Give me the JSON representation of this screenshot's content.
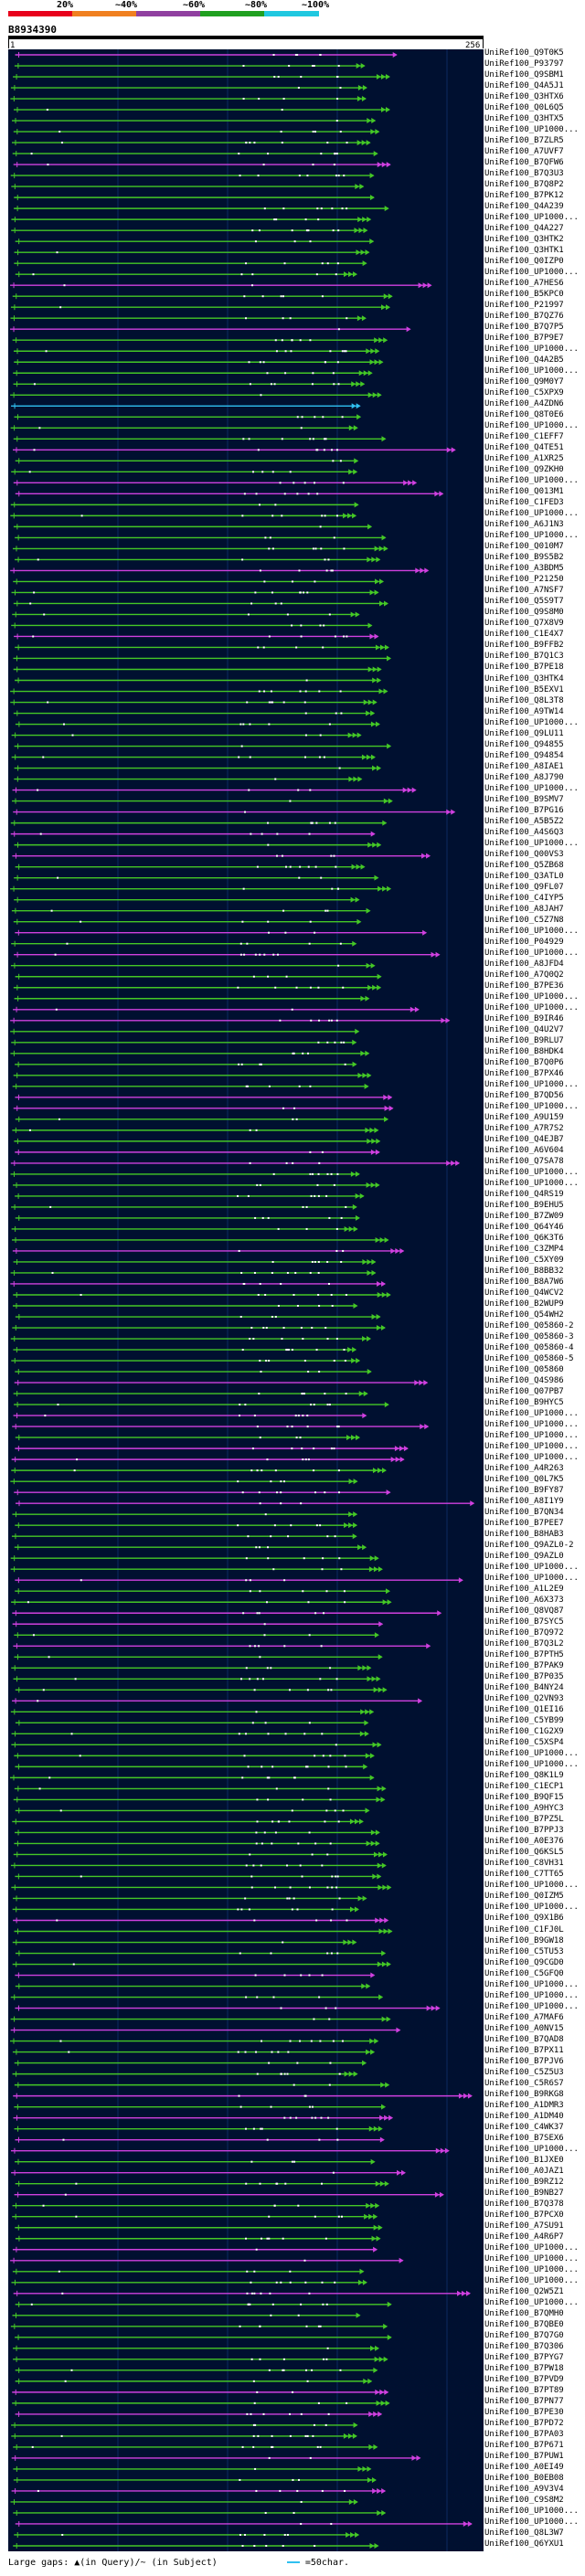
{
  "legend": {
    "labels": [
      "20%",
      "~40%",
      "~60%",
      "~80%",
      "~100%"
    ],
    "colors": [
      "#e8001c",
      "#f08020",
      "#9040a0",
      "#20a020",
      "#20c8e0"
    ]
  },
  "query": {
    "id": "B8934390",
    "start": "1",
    "end": "256"
  },
  "colors": {
    "green": "#44c826",
    "magenta": "#d040e0",
    "cyan": "#30c0f0",
    "background": "#001030"
  },
  "hits": [
    "UniRef100_Q9T0K5",
    "UniRef100_P93797",
    "UniRef100_Q9SBM1",
    "UniRef100_Q4A5J1",
    "UniRef100_Q3HTX6",
    "UniRef100_Q0L6Q5",
    "UniRef100_Q3HTX5",
    "UniRef100_UP1000...",
    "UniRef100_B7ZLR5",
    "UniRef100_A7UVF7",
    "UniRef100_B7QFW6",
    "UniRef100_B7Q3U3",
    "UniRef100_B7Q8P2",
    "UniRef100_B7PK12",
    "UniRef100_Q4A239",
    "UniRef100_UP1000...",
    "UniRef100_Q4A227",
    "UniRef100_Q3HTK2",
    "UniRef100_Q3HTK1",
    "UniRef100_Q0IZP0",
    "UniRef100_UP1000...",
    "UniRef100_A7HES6",
    "UniRef100_B5KPC0",
    "UniRef100_P21997",
    "UniRef100_B7QZ76",
    "UniRef100_B7Q7P5",
    "UniRef100_B7P9E7",
    "UniRef100_UP1000...",
    "UniRef100_Q4A2B5",
    "UniRef100_UP1000...",
    "UniRef100_Q9M0Y7",
    "UniRef100_C5XPX9",
    "UniRef100_A4ZDN6",
    "UniRef100_Q8T0E6",
    "UniRef100_UP1000...",
    "UniRef100_C1EFF7",
    "UniRef100_Q4TE51",
    "UniRef100_A1XR25",
    "UniRef100_Q9ZKH0",
    "UniRef100_UP1000...",
    "UniRef100_Q013M1",
    "UniRef100_C1FED3",
    "UniRef100_UP1000...",
    "UniRef100_A6J1N3",
    "UniRef100_UP1000...",
    "UniRef100_Q010M7",
    "UniRef100_B9S5B2",
    "UniRef100_A3BDM5",
    "UniRef100_P21250",
    "UniRef100_A7NSF7",
    "UniRef100_Q5S9T7",
    "UniRef100_Q9S8M0",
    "UniRef100_Q7X8V9",
    "UniRef100_C1E4X7",
    "UniRef100_B9FFB2",
    "UniRef100_B7Q1C3",
    "UniRef100_B7PE18",
    "UniRef100_Q3HTK4",
    "UniRef100_B5EXV1",
    "UniRef100_Q8L3T8",
    "UniRef100_A9TW14",
    "UniRef100_UP1000...",
    "UniRef100_Q9LU11",
    "UniRef100_Q94855",
    "UniRef100_Q94854",
    "UniRef100_A8IAE1",
    "UniRef100_A8J790",
    "UniRef100_UP1000...",
    "UniRef100_B9SMV7",
    "UniRef100_B7PG16",
    "UniRef100_A5B5Z2",
    "UniRef100_A4S6Q3",
    "UniRef100_UP1000...",
    "UniRef100_Q00VS3",
    "UniRef100_Q5ZB68",
    "UniRef100_Q3ATL0",
    "UniRef100_Q9FL07",
    "UniRef100_C4IYP5",
    "UniRef100_A8JAH7",
    "UniRef100_C5Z7N8",
    "UniRef100_UP1000...",
    "UniRef100_P04929",
    "UniRef100_UP1000...",
    "UniRef100_A8JFD4",
    "UniRef100_A7Q0Q2",
    "UniRef100_B7PE36",
    "UniRef100_UP1000...",
    "UniRef100_UP1000...",
    "UniRef100_B9IR46",
    "UniRef100_Q4U2V7",
    "UniRef100_B9RLU7",
    "UniRef100_B8HDK4",
    "UniRef100_B7Q0P6",
    "UniRef100_B7PX46",
    "UniRef100_UP1000...",
    "UniRef100_B7QD56",
    "UniRef100_UP1000...",
    "UniRef100_A9U159",
    "UniRef100_A7R7S2",
    "UniRef100_Q4EJB7",
    "UniRef100_A6V604",
    "UniRef100_Q7SA78",
    "UniRef100_UP1000...",
    "UniRef100_UP1000...",
    "UniRef100_Q4RS19",
    "UniRef100_B9EHU5",
    "UniRef100_B7ZW09",
    "UniRef100_Q64Y46",
    "UniRef100_Q6K3T6",
    "UniRef100_C3ZMP4",
    "UniRef100_C5XY09",
    "UniRef100_B8BB32",
    "UniRef100_B8A7W6",
    "UniRef100_Q4WCV2",
    "UniRef100_B2WUP9",
    "UniRef100_Q54WH2",
    "UniRef100_Q05860-2",
    "UniRef100_Q05860-3",
    "UniRef100_Q05860-4",
    "UniRef100_Q05860-5",
    "UniRef100_Q05860",
    "UniRef100_Q4S986",
    "UniRef100_Q07PB7",
    "UniRef100_B9HYC5",
    "UniRef100_UP1000...",
    "UniRef100_UP1000...",
    "UniRef100_UP1000...",
    "UniRef100_UP1000...",
    "UniRef100_UP1000...",
    "UniRef100_A4R263",
    "UniRef100_Q0L7K5",
    "UniRef100_B9FY87",
    "UniRef100_A8I1Y9",
    "UniRef100_B7QN34",
    "UniRef100_B7PEE7",
    "UniRef100_B8HAB3",
    "UniRef100_Q9AZL0-2",
    "UniRef100_Q9AZL0",
    "UniRef100_UP1000...",
    "UniRef100_UP1000...",
    "UniRef100_A1L2E9",
    "UniRef100_A6X373",
    "UniRef100_Q8VQ87",
    "UniRef100_B7SYC5",
    "UniRef100_B7Q972",
    "UniRef100_B7Q3L2",
    "UniRef100_B7PTH5",
    "UniRef100_B7PAK9",
    "UniRef100_B7P035",
    "UniRef100_B4NY24",
    "UniRef100_Q2VN93",
    "UniRef100_Q1EI16",
    "UniRef100_C5YB99",
    "UniRef100_C1G2X9",
    "UniRef100_C5XSP4",
    "UniRef100_UP1000...",
    "UniRef100_UP1000...",
    "UniRef100_Q8K1L9",
    "UniRef100_C1ECP1",
    "UniRef100_B9QF15",
    "UniRef100_A9HYC3",
    "UniRef100_B7PZ5L",
    "UniRef100_B7PPJ3",
    "UniRef100_A0E376",
    "UniRef100_Q6KSL5",
    "UniRef100_C8VH31",
    "UniRef100_C7TT65",
    "UniRef100_UP1000...",
    "UniRef100_Q0IZM5",
    "UniRef100_UP1000...",
    "UniRef100_Q9X1B6",
    "UniRef100_C1FJ0L",
    "UniRef100_B9GW18",
    "UniRef100_C5TU53",
    "UniRef100_Q9CGD0",
    "UniRef100_C5GFQ0",
    "UniRef100_UP1000...",
    "UniRef100_UP1000...",
    "UniRef100_UP1000...",
    "UniRef100_A7MAF6",
    "UniRef100_A0NV15",
    "UniRef100_B7QAD8",
    "UniRef100_B7PX11",
    "UniRef100_B7PJV6",
    "UniRef100_C5Z5U3",
    "UniRef100_C5R6S7",
    "UniRef100_B9RKG8",
    "UniRef100_A1DMR3",
    "UniRef100_A1DM40",
    "UniRef100_C4WK37",
    "UniRef100_B7SEX6",
    "UniRef100_UP1000...",
    "UniRef100_B1JXE0",
    "UniRef100_A0JAZ1",
    "UniRef100_B9RZ12",
    "UniRef100_B9NB27",
    "UniRef100_B7Q378",
    "UniRef100_B7PCX0",
    "UniRef100_A7SU91",
    "UniRef100_A4R6P7",
    "UniRef100_UP1000...",
    "UniRef100_UP1000...",
    "UniRef100_UP1000...",
    "UniRef100_UP1000...",
    "UniRef100_Q2W5Z1",
    "UniRef100_UP1000...",
    "UniRef100_B7QMH0",
    "UniRef100_B7QBE0",
    "UniRef100_B7Q7G0",
    "UniRef100_B7Q306",
    "UniRef100_B7PYG7",
    "UniRef100_B7PW18",
    "UniRef100_B7PVD9",
    "UniRef100_B7PT89",
    "UniRef100_B7PN77",
    "UniRef100_B7PE30",
    "UniRef100_B7PD72",
    "UniRef100_B7PA03",
    "UniRef100_B7P671",
    "UniRef100_B7PUW1",
    "UniRef100_A0EI49",
    "UniRef100_B0EB08",
    "UniRef100_A9V3V4",
    "UniRef100_C9S8M2",
    "UniRef100_UP1000...",
    "UniRef100_UP1000...",
    "UniRef100_Q8L3W7",
    "UniRef100_Q6YXU1"
  ],
  "footer": {
    "text": "Large gaps: ▲(in Query)/~ (in Subject)",
    "scale": "=50char."
  }
}
